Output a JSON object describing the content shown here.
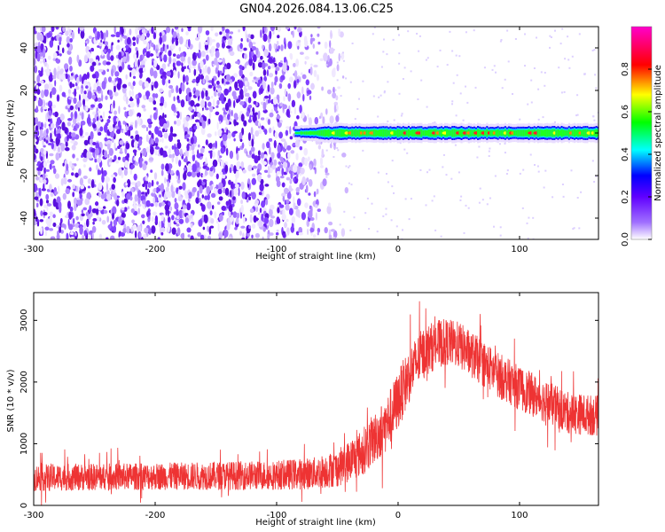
{
  "page_title": "GN04.2026.084.13.06.C25",
  "chart_data": [
    {
      "type": "heatmap",
      "title": "GN04.2026.084.13.06.C25",
      "xlabel": "Height of straight line (km)",
      "ylabel": "Frequency (Hz)",
      "xlim": [
        -300,
        165
      ],
      "ylim": [
        -50,
        50
      ],
      "xticks": [
        -300,
        -200,
        -100,
        0,
        100
      ],
      "xtick_labels": [
        "-300",
        "-200",
        "-100",
        "0",
        "100"
      ],
      "yticks": [
        -40,
        -20,
        0,
        20,
        40
      ],
      "ytick_labels": [
        "-40",
        "-20",
        "0",
        "20",
        "40"
      ],
      "colorbar": {
        "label": "Normalized spectral amplitude",
        "range": [
          0,
          1
        ],
        "ticks": [
          0,
          0.2,
          0.4,
          0.6,
          0.8
        ],
        "tick_labels": [
          "0.0",
          "0.2",
          "0.4",
          "0.6",
          "0.8"
        ],
        "colors": [
          "#ffffff",
          "#7f00ff",
          "#0000ff",
          "#00ffff",
          "#00ff00",
          "#ffff00",
          "#ff0000",
          "#ff00ff"
        ]
      },
      "features": {
        "noise_region_x": [
          -300,
          -60
        ],
        "signal_line_x": [
          -85,
          165
        ],
        "signal_line_frequency": 0,
        "signal_peak_x": [
          0,
          120
        ]
      },
      "grid": false
    },
    {
      "type": "line",
      "xlabel": "Height of straight line (km)",
      "ylabel": "SNR (10 * v/v)",
      "xlim": [
        -300,
        165
      ],
      "ylim": [
        0,
        3450
      ],
      "xticks": [
        -300,
        -200,
        -100,
        0,
        100
      ],
      "xtick_labels": [
        "-300",
        "-200",
        "-100",
        "0",
        "100"
      ],
      "yticks": [
        0,
        1000,
        2000,
        3000
      ],
      "ytick_labels": [
        "0",
        "1000",
        "2000",
        "3000"
      ],
      "line_color": "#ee3333",
      "envelope": {
        "x": [
          -300,
          -250,
          -200,
          -150,
          -100,
          -70,
          -50,
          -30,
          -10,
          0,
          10,
          20,
          30,
          40,
          50,
          60,
          80,
          100,
          120,
          140,
          165
        ],
        "mean": [
          450,
          460,
          470,
          480,
          490,
          520,
          600,
          850,
          1300,
          1700,
          2150,
          2450,
          2600,
          2650,
          2600,
          2450,
          2150,
          1900,
          1700,
          1500,
          1450
        ],
        "spread": [
          220,
          220,
          220,
          230,
          240,
          260,
          300,
          380,
          450,
          480,
          450,
          420,
          400,
          380,
          380,
          380,
          370,
          360,
          350,
          340,
          330
        ]
      },
      "grid": false
    }
  ]
}
